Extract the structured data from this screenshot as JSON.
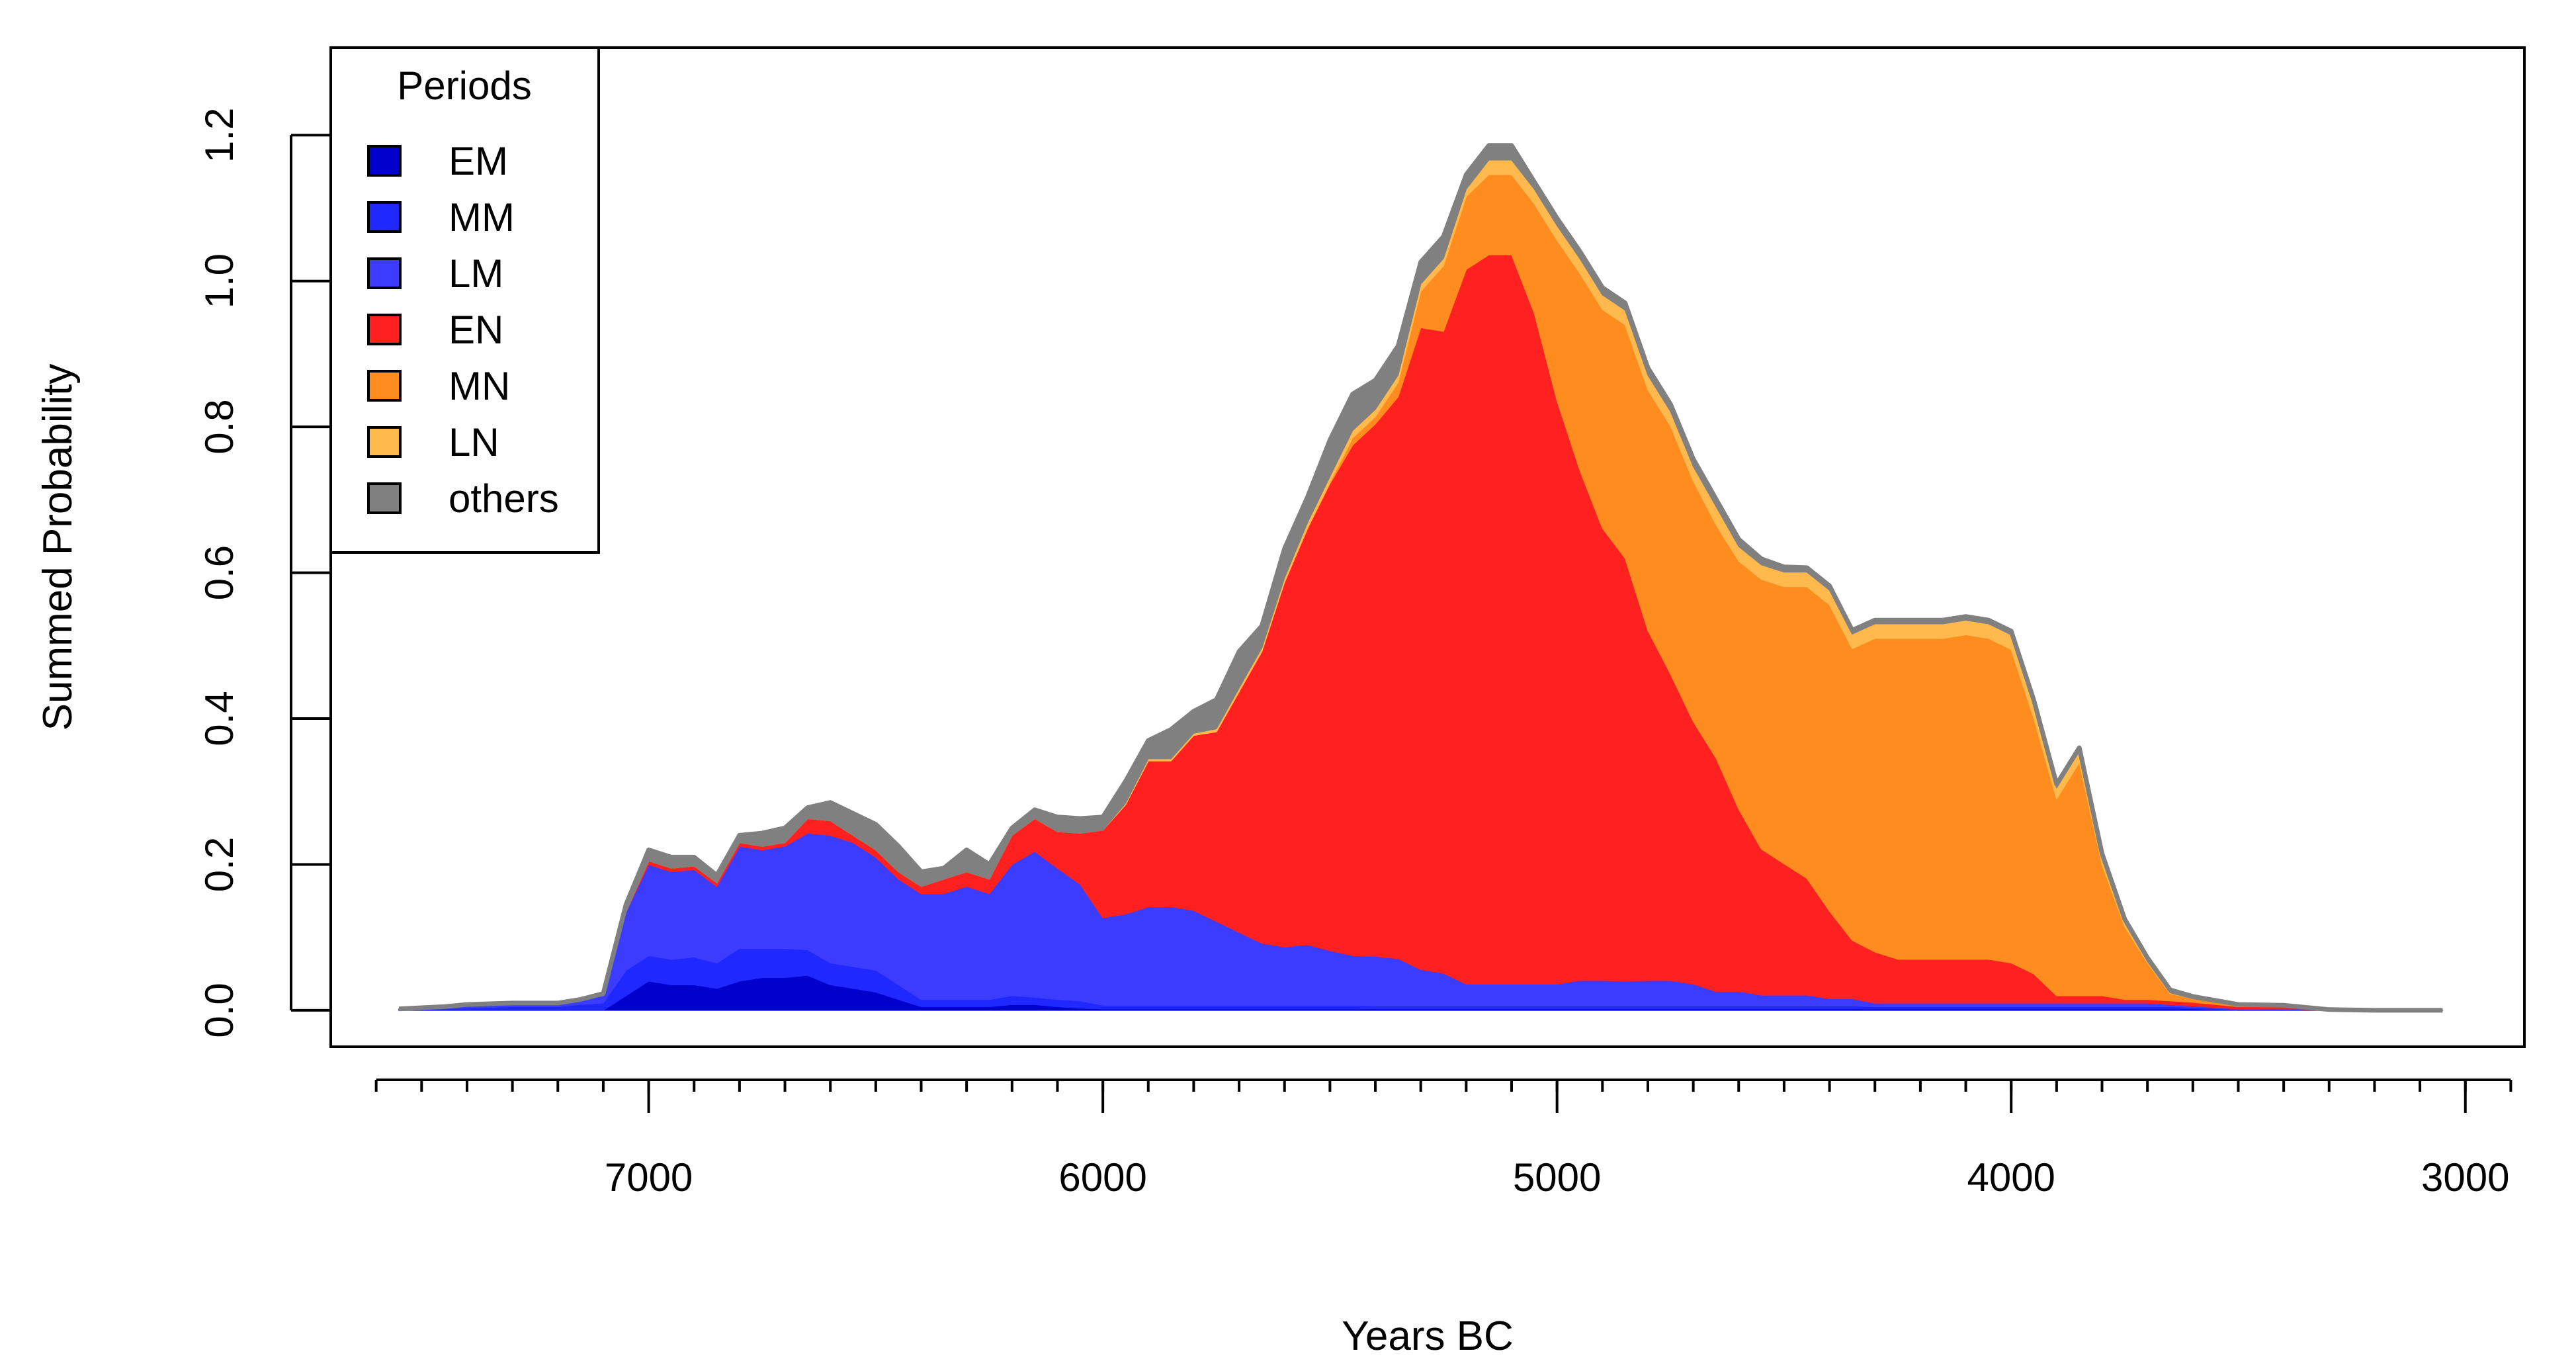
{
  "chart_data": {
    "type": "area",
    "stacked": true,
    "title": "",
    "xlabel": "Years BC",
    "ylabel": "Summed Probability",
    "xlim": [
      7700,
      2870
    ],
    "ylim": [
      -0.05,
      1.32
    ],
    "x_reversed": true,
    "x_ticks": [
      7000,
      6000,
      5000,
      4000,
      3000
    ],
    "x_tick_labels": [
      "7000",
      "6000",
      "5000",
      "4000",
      "3000"
    ],
    "x_minor_step": 100,
    "y_ticks": [
      0.0,
      0.2,
      0.4,
      0.6,
      0.8,
      1.0,
      1.2
    ],
    "y_tick_labels": [
      "0.0",
      "0.2",
      "0.4",
      "0.6",
      "0.8",
      "1.0",
      "1.2"
    ],
    "legend": {
      "title": "Periods",
      "position": "top-left",
      "entries": [
        {
          "label": "EM",
          "color": "#0000CD"
        },
        {
          "label": "MM",
          "color": "#1E28FF"
        },
        {
          "label": "LM",
          "color": "#3C3CFF"
        },
        {
          "label": "EN",
          "color": "#FF2020"
        },
        {
          "label": "MN",
          "color": "#FF8C1E"
        },
        {
          "label": "LN",
          "color": "#FFB94D"
        },
        {
          "label": "others",
          "color": "#808080"
        }
      ]
    },
    "x": [
      7550,
      7450,
      7400,
      7300,
      7250,
      7200,
      7150,
      7100,
      7050,
      7000,
      6950,
      6900,
      6850,
      6800,
      6750,
      6700,
      6650,
      6600,
      6550,
      6500,
      6450,
      6400,
      6350,
      6300,
      6250,
      6200,
      6150,
      6100,
      6050,
      6000,
      5950,
      5900,
      5850,
      5800,
      5750,
      5700,
      5650,
      5600,
      5550,
      5500,
      5450,
      5400,
      5350,
      5300,
      5250,
      5200,
      5150,
      5100,
      5050,
      5000,
      4950,
      4900,
      4850,
      4800,
      4750,
      4700,
      4650,
      4600,
      4550,
      4500,
      4450,
      4400,
      4350,
      4300,
      4250,
      4200,
      4150,
      4100,
      4050,
      4000,
      3950,
      3900,
      3850,
      3800,
      3750,
      3700,
      3650,
      3600,
      3500,
      3400,
      3300,
      3200,
      3050
    ],
    "series": [
      {
        "name": "EM",
        "color": "#0000CD",
        "values": [
          0,
          0,
          0,
          0,
          0,
          0,
          0,
          0,
          0.02,
          0.04,
          0.035,
          0.035,
          0.03,
          0.04,
          0.045,
          0.045,
          0.048,
          0.035,
          0.03,
          0.025,
          0.015,
          0.005,
          0.005,
          0.005,
          0.005,
          0.008,
          0.008,
          0.005,
          0.003,
          0.002,
          0.002,
          0.002,
          0.002,
          0.002,
          0.002,
          0.002,
          0.002,
          0.002,
          0.002,
          0.002,
          0.002,
          0.002,
          0.002,
          0.002,
          0.002,
          0.002,
          0.002,
          0.002,
          0.002,
          0.002,
          0.002,
          0.002,
          0.002,
          0.002,
          0.002,
          0.002,
          0.002,
          0.002,
          0.002,
          0.002,
          0.002,
          0.002,
          0.002,
          0.002,
          0.002,
          0.002,
          0.002,
          0.002,
          0.002,
          0.002,
          0.002,
          0.002,
          0.002,
          0.002,
          0.002,
          0.002,
          0.002,
          0.002,
          0,
          0,
          0,
          0,
          0
        ]
      },
      {
        "name": "MM",
        "color": "#1E28FF",
        "values": [
          0.001,
          0.002,
          0.003,
          0.005,
          0.005,
          0.005,
          0.008,
          0.01,
          0.035,
          0.035,
          0.035,
          0.038,
          0.035,
          0.045,
          0.04,
          0.04,
          0.035,
          0.03,
          0.03,
          0.03,
          0.02,
          0.01,
          0.01,
          0.01,
          0.01,
          0.012,
          0.01,
          0.01,
          0.01,
          0.005,
          0.005,
          0.005,
          0.005,
          0.005,
          0.005,
          0.005,
          0.005,
          0.005,
          0.005,
          0.005,
          0.005,
          0.004,
          0.004,
          0.004,
          0.004,
          0.004,
          0.004,
          0.004,
          0.004,
          0.004,
          0.004,
          0.004,
          0.004,
          0.004,
          0.004,
          0.004,
          0.004,
          0.004,
          0.004,
          0.004,
          0.004,
          0.004,
          0.004,
          0.003,
          0.003,
          0.003,
          0.003,
          0.003,
          0.003,
          0.003,
          0.003,
          0.003,
          0.003,
          0.003,
          0.003,
          0.003,
          0.003,
          0.002,
          0.001,
          0.001,
          0,
          0,
          0
        ]
      },
      {
        "name": "LM",
        "color": "#3C3CFF",
        "values": [
          0.001,
          0.003,
          0.005,
          0.005,
          0.005,
          0.005,
          0.007,
          0.01,
          0.08,
          0.125,
          0.12,
          0.12,
          0.105,
          0.14,
          0.135,
          0.14,
          0.16,
          0.175,
          0.17,
          0.155,
          0.145,
          0.145,
          0.145,
          0.155,
          0.145,
          0.18,
          0.2,
          0.18,
          0.16,
          0.12,
          0.125,
          0.135,
          0.135,
          0.13,
          0.115,
          0.1,
          0.085,
          0.08,
          0.083,
          0.075,
          0.068,
          0.068,
          0.065,
          0.05,
          0.045,
          0.03,
          0.03,
          0.03,
          0.03,
          0.03,
          0.035,
          0.035,
          0.034,
          0.035,
          0.035,
          0.03,
          0.02,
          0.02,
          0.015,
          0.015,
          0.015,
          0.01,
          0.01,
          0.005,
          0.005,
          0.005,
          0.005,
          0.005,
          0.005,
          0.005,
          0.005,
          0.005,
          0.005,
          0.005,
          0.005,
          0.005,
          0.003,
          0.002,
          0.001,
          0.001,
          0,
          0,
          0
        ]
      },
      {
        "name": "EN",
        "color": "#FF2020",
        "values": [
          0,
          0,
          0,
          0,
          0,
          0,
          0,
          0,
          0,
          0.005,
          0.005,
          0.005,
          0.005,
          0.005,
          0.005,
          0.005,
          0.02,
          0.02,
          0.01,
          0.01,
          0.01,
          0.01,
          0.02,
          0.02,
          0.02,
          0.04,
          0.045,
          0.05,
          0.07,
          0.12,
          0.15,
          0.2,
          0.2,
          0.24,
          0.26,
          0.33,
          0.4,
          0.5,
          0.57,
          0.64,
          0.7,
          0.73,
          0.77,
          0.88,
          0.88,
          0.98,
          1.0,
          1.0,
          0.92,
          0.8,
          0.7,
          0.62,
          0.58,
          0.48,
          0.42,
          0.36,
          0.32,
          0.25,
          0.2,
          0.18,
          0.16,
          0.12,
          0.08,
          0.07,
          0.06,
          0.06,
          0.06,
          0.06,
          0.06,
          0.055,
          0.04,
          0.01,
          0.01,
          0.01,
          0.005,
          0.005,
          0.005,
          0.005,
          0.003,
          0.003,
          0,
          0,
          0
        ]
      },
      {
        "name": "MN",
        "color": "#FF8C1E",
        "values": [
          0,
          0,
          0,
          0,
          0,
          0,
          0,
          0,
          0,
          0,
          0,
          0,
          0,
          0,
          0,
          0,
          0,
          0,
          0,
          0,
          0,
          0,
          0,
          0,
          0,
          0,
          0,
          0,
          0,
          0,
          0,
          0,
          0,
          0,
          0,
          0,
          0,
          0,
          0,
          0.002,
          0.01,
          0.01,
          0.02,
          0.05,
          0.09,
          0.1,
          0.11,
          0.11,
          0.15,
          0.22,
          0.27,
          0.3,
          0.32,
          0.33,
          0.34,
          0.33,
          0.32,
          0.34,
          0.37,
          0.38,
          0.4,
          0.42,
          0.4,
          0.43,
          0.44,
          0.44,
          0.44,
          0.445,
          0.44,
          0.43,
          0.35,
          0.27,
          0.32,
          0.18,
          0.1,
          0.05,
          0.01,
          0.005,
          0.001,
          0.001,
          0,
          0,
          0
        ]
      },
      {
        "name": "LN",
        "color": "#FFB94D",
        "values": [
          0,
          0,
          0,
          0,
          0,
          0,
          0,
          0,
          0,
          0,
          0,
          0,
          0,
          0,
          0,
          0,
          0,
          0,
          0,
          0,
          0,
          0,
          0,
          0,
          0,
          0,
          0,
          0,
          0,
          0,
          0.002,
          0.003,
          0.003,
          0.003,
          0.004,
          0.005,
          0.005,
          0.006,
          0.008,
          0.008,
          0.01,
          0.01,
          0.01,
          0.01,
          0.01,
          0.01,
          0.02,
          0.02,
          0.02,
          0.02,
          0.02,
          0.02,
          0.02,
          0.02,
          0.02,
          0.02,
          0.025,
          0.02,
          0.02,
          0.02,
          0.02,
          0.02,
          0.02,
          0.02,
          0.02,
          0.02,
          0.02,
          0.02,
          0.02,
          0.02,
          0.02,
          0.015,
          0.015,
          0.01,
          0.005,
          0.002,
          0.001,
          0,
          0,
          0,
          0,
          0,
          0
        ]
      },
      {
        "name": "others",
        "color": "#808080",
        "values": [
          0,
          0,
          0,
          0,
          0,
          0,
          0,
          0.003,
          0.01,
          0.015,
          0.015,
          0.012,
          0.01,
          0.01,
          0.018,
          0.02,
          0.015,
          0.025,
          0.03,
          0.035,
          0.035,
          0.02,
          0.015,
          0.03,
          0.02,
          0.01,
          0.012,
          0.02,
          0.02,
          0.018,
          0.03,
          0.025,
          0.04,
          0.03,
          0.04,
          0.05,
          0.03,
          0.04,
          0.035,
          0.05,
          0.05,
          0.04,
          0.04,
          0.03,
          0.03,
          0.02,
          0.02,
          0.02,
          0.01,
          0.01,
          0.01,
          0.01,
          0.01,
          0.01,
          0.01,
          0.01,
          0.01,
          0.01,
          0.008,
          0.007,
          0.006,
          0.006,
          0.005,
          0.005,
          0.005,
          0.005,
          0.005,
          0.005,
          0.005,
          0.005,
          0.005,
          0.005,
          0.005,
          0.005,
          0.005,
          0.005,
          0.004,
          0.003,
          0.002,
          0.001,
          0.001,
          0,
          0
        ]
      }
    ]
  }
}
